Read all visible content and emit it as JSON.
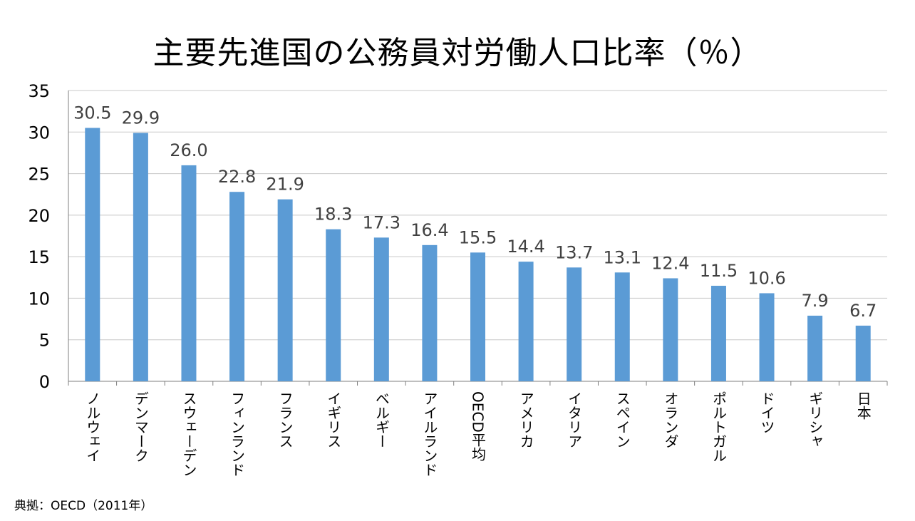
{
  "source": "典拠：OECD（2011年）",
  "chart_data": {
    "type": "bar",
    "title": "主要先進国の公務員対労働人口比率（％）",
    "xlabel": "",
    "ylabel": "",
    "ylim": [
      0,
      35
    ],
    "yticks": [
      "0",
      "5",
      "10",
      "15",
      "20",
      "25",
      "30",
      "35"
    ],
    "grid": true,
    "bar_color": "#5B9BD5",
    "categories": [
      "ノルウェイ",
      "デンマーク",
      "スウェーデン",
      "フィンランド",
      "フランス",
      "イギリス",
      "ベルギー",
      "アイルランド",
      "OECD平均",
      "アメリカ",
      "イタリア",
      "スペイン",
      "オランダ",
      "ポルトガル",
      "ドイツ",
      "ギリシャ",
      "日本"
    ],
    "values": [
      30.5,
      29.9,
      26.0,
      22.8,
      21.9,
      18.3,
      17.3,
      16.4,
      15.5,
      14.4,
      13.7,
      13.1,
      12.4,
      11.5,
      10.6,
      7.9,
      6.7
    ],
    "value_labels": [
      "30.5",
      "29.9",
      "26.0",
      "22.8",
      "21.9",
      "18.3",
      "17.3",
      "16.4",
      "15.5",
      "14.4",
      "13.7",
      "13.1",
      "12.4",
      "11.5",
      "10.6",
      "7.9",
      "6.7"
    ]
  }
}
